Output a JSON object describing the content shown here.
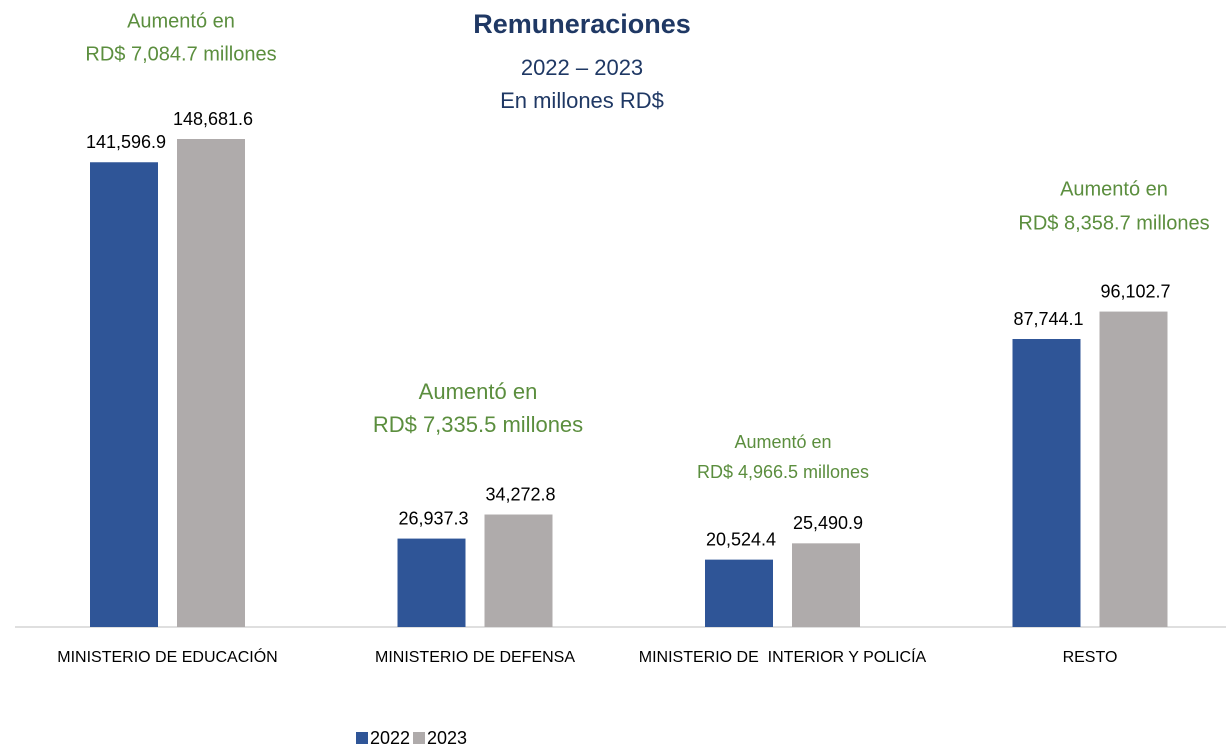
{
  "chart_data": {
    "type": "bar",
    "title": "Remuneraciones",
    "subtitle": [
      "2022 – 2023",
      "En millones RD$"
    ],
    "categories": [
      "MINISTERIO DE EDUCACIÓN",
      "MINISTERIO DE DEFENSA",
      "MINISTERIO DE  INTERIOR Y POLICÍA",
      "RESTO"
    ],
    "series": [
      {
        "name": "2022",
        "color": "#2f5597",
        "values": [
          141596.9,
          26937.3,
          20524.4,
          87744.1
        ],
        "value_labels": [
          "141,596.9",
          "26,937.3",
          "20,524.4",
          "87,744.1"
        ]
      },
      {
        "name": "2023",
        "color": "#afabab",
        "values": [
          148681.6,
          34272.8,
          25490.9,
          96102.7
        ],
        "value_labels": [
          "148,681.6",
          "34,272.8",
          "25,490.9",
          "96,102.7"
        ]
      }
    ],
    "annotations": [
      [
        "Aumentó en",
        "RD$ 7,084.7 millones"
      ],
      [
        "Aumentó en",
        "RD$ 7,335.5 millones"
      ],
      [
        "Aumentó en",
        "RD$ 4,966.5 millones"
      ],
      [
        "Aumentó en",
        "RD$ 8,358.7 millones"
      ]
    ]
  }
}
